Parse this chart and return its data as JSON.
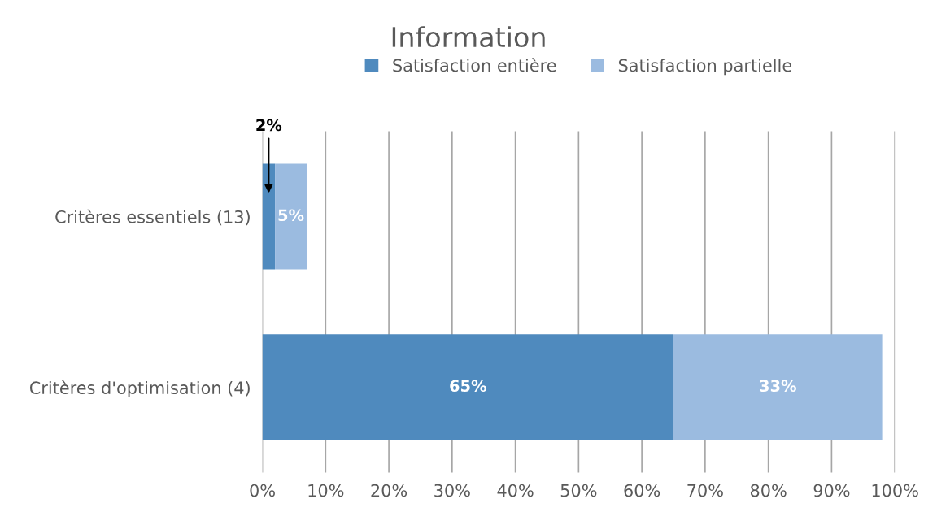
{
  "chart_data": {
    "type": "bar",
    "orientation": "horizontal",
    "stacked": true,
    "title": "Information",
    "categories": [
      "Critères essentiels (13)",
      "Critères d'optimisation (4)"
    ],
    "series": [
      {
        "name": "Satisfaction entière",
        "color": "#4f8abe",
        "values": [
          2,
          65
        ],
        "value_labels": [
          "2%",
          "65%"
        ]
      },
      {
        "name": "Satisfaction partielle",
        "color": "#9bbbe0",
        "values": [
          5,
          33
        ],
        "value_labels": [
          "5%",
          "33%"
        ]
      }
    ],
    "xlim": [
      0,
      100
    ],
    "xticks": [
      {
        "value": 0,
        "label": "0%"
      },
      {
        "value": 10,
        "label": "10%"
      },
      {
        "value": 20,
        "label": "20%"
      },
      {
        "value": 30,
        "label": "30%"
      },
      {
        "value": 40,
        "label": "40%"
      },
      {
        "value": 50,
        "label": "50%"
      },
      {
        "value": 60,
        "label": "60%"
      },
      {
        "value": 70,
        "label": "70%"
      },
      {
        "value": 80,
        "label": "80%"
      },
      {
        "value": 90,
        "label": "90%"
      },
      {
        "value": 100,
        "label": "100%"
      }
    ],
    "grid": "x",
    "legend": "top"
  }
}
